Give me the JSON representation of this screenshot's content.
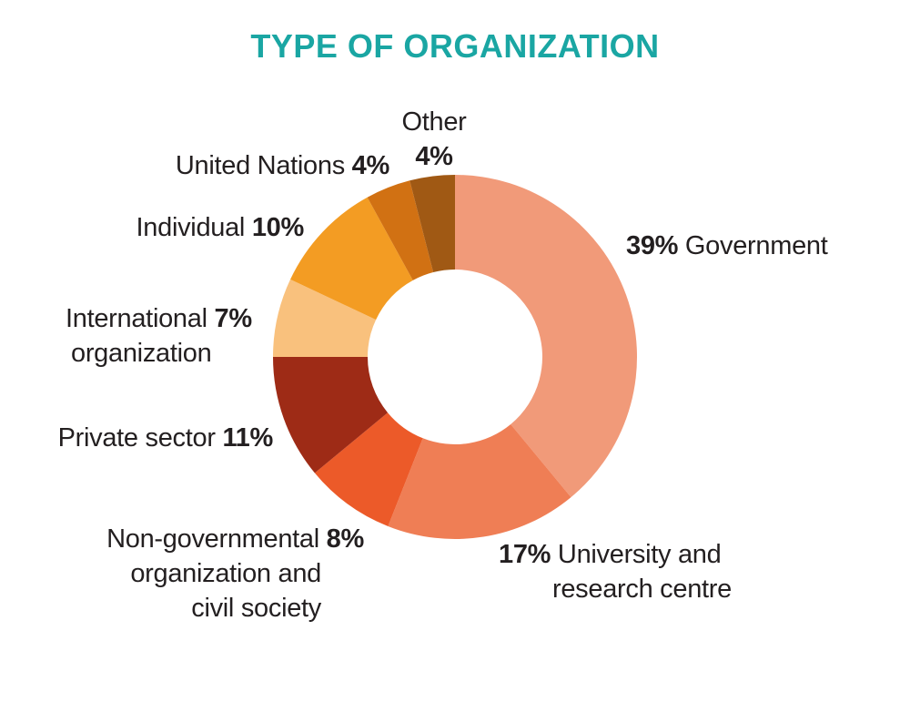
{
  "chart_data": {
    "type": "pie",
    "variant": "donut",
    "title": "TYPE OF ORGANIZATION",
    "slices": [
      {
        "label_lines": [
          "Government"
        ],
        "value": 39,
        "value_text": "39%",
        "color": "#f19a79"
      },
      {
        "label_lines": [
          "University and",
          "research centre"
        ],
        "value": 17,
        "value_text": "17%",
        "color": "#ef7e55"
      },
      {
        "label_lines": [
          "Non-governmental",
          "organization and",
          "civil society"
        ],
        "value": 8,
        "value_text": "8%",
        "color": "#ec5a29"
      },
      {
        "label_lines": [
          "Private sector"
        ],
        "value": 11,
        "value_text": "11%",
        "color": "#9e2b16"
      },
      {
        "label_lines": [
          "International",
          "organization"
        ],
        "value": 7,
        "value_text": "7%",
        "color": "#f9c17d"
      },
      {
        "label_lines": [
          "Individual"
        ],
        "value": 10,
        "value_text": "10%",
        "color": "#f39c23"
      },
      {
        "label_lines": [
          "United Nations"
        ],
        "value": 4,
        "value_text": "4%",
        "color": "#d17113"
      },
      {
        "label_lines": [
          "Other"
        ],
        "value": 4,
        "value_text": "4%",
        "color": "#a05914"
      }
    ]
  }
}
